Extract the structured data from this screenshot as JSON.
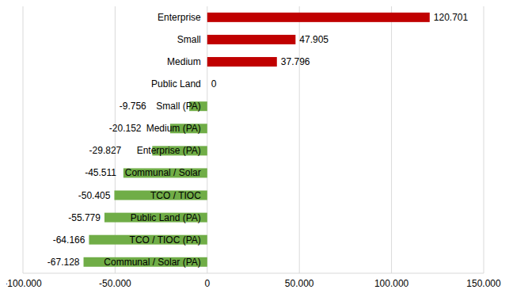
{
  "chart_data": {
    "type": "bar",
    "orientation": "horizontal",
    "categories": [
      "Enterprise",
      "Small",
      "Medium",
      "Public Land",
      "Small (PA)",
      "Medium (PA)",
      "Enterprise (PA)",
      "Communal / Solar",
      "TCO / TIOC",
      "Public Land (PA)",
      "TCO / TIOC (PA)",
      "Communal / Solar (PA)"
    ],
    "values": [
      120.701,
      47.905,
      37.796,
      0,
      -9.756,
      -20.152,
      -29.827,
      -45.511,
      -50.405,
      -55.779,
      -64.166,
      -67.128
    ],
    "colors": [
      "#c00000",
      "#c00000",
      "#c00000",
      "#c00000",
      "#70ad47",
      "#70ad47",
      "#70ad47",
      "#70ad47",
      "#70ad47",
      "#70ad47",
      "#70ad47",
      "#70ad47"
    ],
    "xlim": [
      -100,
      150
    ],
    "xticks": [
      {
        "value": -100,
        "label": "-100.000"
      },
      {
        "value": -50,
        "label": "-50.000"
      },
      0,
      {
        "value": 50,
        "label": "50.000"
      },
      {
        "value": 100,
        "label": "100.000"
      },
      {
        "value": 150,
        "label": "150.000"
      }
    ],
    "grid": true,
    "data_labels": true
  }
}
